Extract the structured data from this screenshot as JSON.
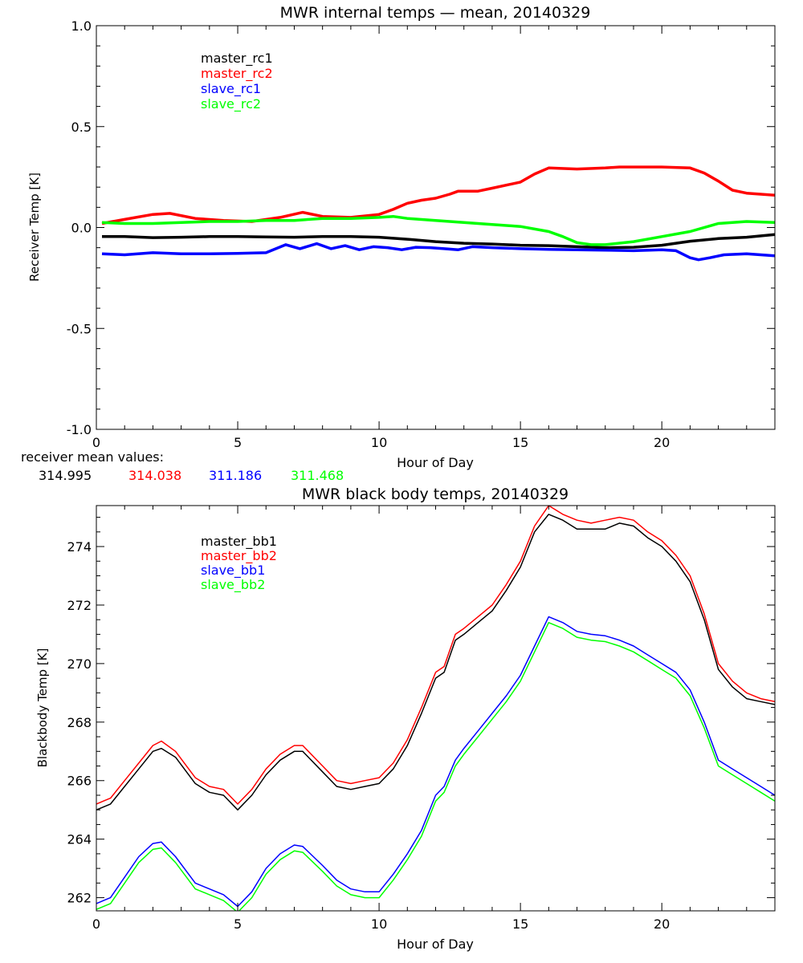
{
  "chart_data": [
    {
      "type": "line",
      "title": "MWR internal temps — mean, 20140329",
      "xlabel": "Hour of Day",
      "ylabel": "Receiver Temp [K]",
      "xlim": [
        0,
        24
      ],
      "ylim": [
        -1.0,
        1.0
      ],
      "x_ticks": [
        0,
        5,
        10,
        15,
        20
      ],
      "x_tick_labels": [
        "0",
        "5",
        "10",
        "15",
        "20"
      ],
      "y_ticks": [
        -1.0,
        -0.5,
        0.0,
        0.5,
        1.0
      ],
      "y_tick_labels": [
        "-1.0",
        "-0.5",
        "0.0",
        "0.5",
        "1.0"
      ],
      "grid": false,
      "legend_position": "top-left",
      "series": [
        {
          "name": "master_rc1",
          "color": "#000000",
          "x": [
            0.2,
            1,
            2,
            3,
            4,
            5,
            6,
            7,
            8,
            9,
            10,
            11,
            12,
            13,
            14,
            15,
            16,
            17,
            18,
            19,
            20,
            21,
            22,
            23,
            24
          ],
          "y": [
            -0.045,
            -0.045,
            -0.05,
            -0.048,
            -0.045,
            -0.045,
            -0.047,
            -0.048,
            -0.045,
            -0.045,
            -0.048,
            -0.058,
            -0.07,
            -0.078,
            -0.082,
            -0.088,
            -0.09,
            -0.095,
            -0.1,
            -0.098,
            -0.088,
            -0.068,
            -0.055,
            -0.048,
            -0.035
          ]
        },
        {
          "name": "master_rc2",
          "color": "#ff0000",
          "x": [
            0.2,
            1,
            2,
            2.6,
            3.5,
            4.5,
            5.5,
            6.5,
            7.3,
            8,
            9,
            10,
            10.5,
            11,
            11.5,
            12,
            12.5,
            12.8,
            13.5,
            14,
            15,
            15.5,
            16,
            17,
            18,
            18.5,
            19,
            20,
            21,
            21.5,
            22,
            22.5,
            23,
            24
          ],
          "y": [
            0.02,
            0.04,
            0.065,
            0.07,
            0.045,
            0.035,
            0.03,
            0.05,
            0.075,
            0.055,
            0.05,
            0.065,
            0.09,
            0.12,
            0.135,
            0.145,
            0.165,
            0.18,
            0.18,
            0.195,
            0.225,
            0.265,
            0.295,
            0.29,
            0.295,
            0.3,
            0.3,
            0.3,
            0.295,
            0.27,
            0.23,
            0.185,
            0.17,
            0.16
          ]
        },
        {
          "name": "slave_rc1",
          "color": "#0000ff",
          "x": [
            0.2,
            1,
            2,
            3,
            4,
            5,
            6,
            6.7,
            7.2,
            7.8,
            8.3,
            8.8,
            9.3,
            9.8,
            10.3,
            10.8,
            11.3,
            11.8,
            12.3,
            12.8,
            13.3,
            14,
            15,
            16,
            17,
            18,
            19,
            20,
            20.5,
            21,
            21.3,
            21.7,
            22.2,
            23,
            24
          ],
          "y": [
            -0.13,
            -0.135,
            -0.125,
            -0.13,
            -0.13,
            -0.128,
            -0.125,
            -0.085,
            -0.105,
            -0.08,
            -0.105,
            -0.09,
            -0.11,
            -0.095,
            -0.1,
            -0.11,
            -0.098,
            -0.1,
            -0.105,
            -0.11,
            -0.095,
            -0.1,
            -0.105,
            -0.108,
            -0.11,
            -0.112,
            -0.115,
            -0.11,
            -0.115,
            -0.15,
            -0.16,
            -0.15,
            -0.135,
            -0.13,
            -0.14
          ]
        },
        {
          "name": "slave_rc2",
          "color": "#00ff00",
          "x": [
            0.2,
            1,
            2,
            3,
            4,
            5,
            6,
            7,
            8,
            9,
            10,
            10.5,
            11,
            12,
            13,
            14,
            15,
            16,
            16.5,
            17,
            17.5,
            18,
            19,
            20,
            21,
            22,
            22.5,
            23,
            24
          ],
          "y": [
            0.025,
            0.02,
            0.02,
            0.025,
            0.03,
            0.03,
            0.035,
            0.035,
            0.045,
            0.045,
            0.05,
            0.055,
            0.045,
            0.035,
            0.025,
            0.015,
            0.005,
            -0.02,
            -0.045,
            -0.075,
            -0.085,
            -0.085,
            -0.07,
            -0.045,
            -0.02,
            0.02,
            0.025,
            0.03,
            0.025
          ]
        }
      ],
      "annotation_label": "receiver mean values:",
      "annotation_values": [
        {
          "value": "314.995",
          "color": "#000000"
        },
        {
          "value": "314.038",
          "color": "#ff0000"
        },
        {
          "value": "311.186",
          "color": "#0000ff"
        },
        {
          "value": "311.468",
          "color": "#00ff00"
        }
      ]
    },
    {
      "type": "line",
      "title": "MWR black body temps, 20140329",
      "xlabel": "Hour of Day",
      "ylabel": "Blackbody Temp [K]",
      "xlim": [
        0,
        24
      ],
      "ylim": [
        261.55,
        275.4
      ],
      "x_ticks": [
        0,
        5,
        10,
        15,
        20
      ],
      "x_tick_labels": [
        "0",
        "5",
        "10",
        "15",
        "20"
      ],
      "y_ticks": [
        262,
        264,
        266,
        268,
        270,
        272,
        274
      ],
      "y_tick_labels": [
        "262",
        "264",
        "266",
        "268",
        "270",
        "272",
        "274"
      ],
      "grid": false,
      "legend_position": "top-left",
      "series": [
        {
          "name": "master_bb1",
          "color": "#000000",
          "x": [
            0,
            0.5,
            1,
            1.5,
            2,
            2.3,
            2.8,
            3.5,
            4,
            4.5,
            5,
            5.5,
            6,
            6.5,
            7,
            7.3,
            8,
            8.5,
            9,
            9.5,
            10,
            10.5,
            11,
            11.5,
            12,
            12.3,
            12.7,
            13,
            13.5,
            14,
            14.5,
            15,
            15.5,
            16,
            16.5,
            17,
            17.5,
            18,
            18.5,
            19,
            19.5,
            20,
            20.5,
            21,
            21.5,
            22,
            22.5,
            23,
            23.5,
            24
          ],
          "y": [
            265,
            265.2,
            265.8,
            266.4,
            267,
            267.1,
            266.8,
            265.9,
            265.6,
            265.5,
            265,
            265.5,
            266.2,
            266.7,
            267,
            267,
            266.3,
            265.8,
            265.7,
            265.8,
            265.9,
            266.4,
            267.2,
            268.3,
            269.5,
            269.7,
            270.8,
            271,
            271.4,
            271.8,
            272.5,
            273.3,
            274.5,
            275.1,
            274.9,
            274.6,
            274.6,
            274.6,
            274.8,
            274.7,
            274.3,
            274,
            273.5,
            272.8,
            271.5,
            269.8,
            269.2,
            268.8,
            268.7,
            268.6
          ]
        },
        {
          "name": "master_bb2",
          "color": "#ff0000",
          "x": [
            0,
            0.5,
            1,
            1.5,
            2,
            2.3,
            2.8,
            3.5,
            4,
            4.5,
            5,
            5.5,
            6,
            6.5,
            7,
            7.3,
            8,
            8.5,
            9,
            9.5,
            10,
            10.5,
            11,
            11.5,
            12,
            12.3,
            12.7,
            13,
            13.5,
            14,
            14.5,
            15,
            15.5,
            16,
            16.5,
            17,
            17.5,
            18,
            18.5,
            19,
            19.5,
            20,
            20.5,
            21,
            21.5,
            22,
            22.5,
            23,
            23.5,
            24
          ],
          "y": [
            265.2,
            265.4,
            266,
            266.6,
            267.2,
            267.35,
            267,
            266.1,
            265.8,
            265.7,
            265.2,
            265.7,
            266.4,
            266.9,
            267.2,
            267.2,
            266.5,
            266,
            265.9,
            266,
            266.1,
            266.6,
            267.4,
            268.5,
            269.7,
            269.9,
            271,
            271.2,
            271.6,
            272,
            272.7,
            273.5,
            274.7,
            275.4,
            275.1,
            274.9,
            274.8,
            274.9,
            275,
            274.9,
            274.5,
            274.2,
            273.7,
            273,
            271.7,
            270,
            269.4,
            269,
            268.8,
            268.7
          ]
        },
        {
          "name": "slave_bb1",
          "color": "#0000ff",
          "x": [
            0,
            0.5,
            1,
            1.5,
            2,
            2.3,
            2.8,
            3.5,
            4,
            4.5,
            5,
            5.5,
            6,
            6.5,
            7,
            7.3,
            8,
            8.5,
            9,
            9.5,
            10,
            10.5,
            11,
            11.5,
            12,
            12.3,
            12.7,
            13,
            13.5,
            14,
            14.5,
            15,
            15.5,
            16,
            16.5,
            17,
            17.5,
            18,
            18.5,
            19,
            19.5,
            20,
            20.5,
            21,
            21.5,
            22,
            22.5,
            23,
            23.5,
            24
          ],
          "y": [
            261.8,
            262,
            262.7,
            263.4,
            263.85,
            263.9,
            263.4,
            262.5,
            262.3,
            262.1,
            261.7,
            262.2,
            263,
            263.5,
            263.8,
            263.75,
            263.1,
            262.6,
            262.3,
            262.2,
            262.2,
            262.8,
            263.5,
            264.3,
            265.5,
            265.8,
            266.7,
            267.1,
            267.7,
            268.3,
            268.9,
            269.6,
            270.6,
            271.6,
            271.4,
            271.1,
            271,
            270.95,
            270.8,
            270.6,
            270.3,
            270,
            269.7,
            269.1,
            268,
            266.7,
            266.4,
            266.1,
            265.8,
            265.5
          ]
        },
        {
          "name": "slave_bb2",
          "color": "#00ff00",
          "x": [
            0,
            0.5,
            1,
            1.5,
            2,
            2.3,
            2.8,
            3.5,
            4,
            4.5,
            5,
            5.5,
            6,
            6.5,
            7,
            7.3,
            8,
            8.5,
            9,
            9.5,
            10,
            10.5,
            11,
            11.5,
            12,
            12.3,
            12.7,
            13,
            13.5,
            14,
            14.5,
            15,
            15.5,
            16,
            16.5,
            17,
            17.5,
            18,
            18.5,
            19,
            19.5,
            20,
            20.5,
            21,
            21.5,
            22,
            22.5,
            23,
            23.5,
            24
          ],
          "y": [
            261.6,
            261.8,
            262.5,
            263.2,
            263.65,
            263.7,
            263.2,
            262.3,
            262.1,
            261.9,
            261.5,
            262,
            262.8,
            263.3,
            263.6,
            263.55,
            262.9,
            262.4,
            262.1,
            262,
            262,
            262.6,
            263.3,
            264.1,
            265.3,
            265.6,
            266.5,
            266.9,
            267.5,
            268.1,
            268.7,
            269.4,
            270.4,
            271.4,
            271.2,
            270.9,
            270.8,
            270.75,
            270.6,
            270.4,
            270.1,
            269.8,
            269.5,
            268.9,
            267.8,
            266.5,
            266.2,
            265.9,
            265.6,
            265.3
          ]
        }
      ]
    }
  ]
}
